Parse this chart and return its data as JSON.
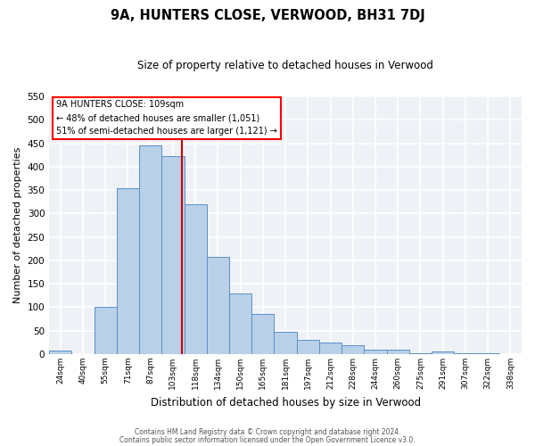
{
  "title": "9A, HUNTERS CLOSE, VERWOOD, BH31 7DJ",
  "subtitle": "Size of property relative to detached houses in Verwood",
  "xlabel": "Distribution of detached houses by size in Verwood",
  "ylabel": "Number of detached properties",
  "categories": [
    "24sqm",
    "40sqm",
    "55sqm",
    "71sqm",
    "87sqm",
    "103sqm",
    "118sqm",
    "134sqm",
    "150sqm",
    "165sqm",
    "181sqm",
    "197sqm",
    "212sqm",
    "228sqm",
    "244sqm",
    "260sqm",
    "275sqm",
    "291sqm",
    "307sqm",
    "322sqm",
    "338sqm"
  ],
  "values": [
    7,
    0,
    100,
    355,
    445,
    422,
    320,
    207,
    130,
    85,
    48,
    30,
    24,
    19,
    9,
    9,
    1,
    5,
    1,
    2,
    0
  ],
  "bar_color": "#b8d0e8",
  "bar_edge_color": "#5b8fc9",
  "bg_color": "#eef2f7",
  "vline_color": "#cc0000",
  "vline_x_index": 5.4,
  "annotation_title": "9A HUNTERS CLOSE: 109sqm",
  "annotation_line1": "← 48% of detached houses are smaller (1,051)",
  "annotation_line2": "51% of semi-detached houses are larger (1,121) →",
  "ylim": [
    0,
    550
  ],
  "yticks": [
    0,
    50,
    100,
    150,
    200,
    250,
    300,
    350,
    400,
    450,
    500,
    550
  ],
  "footer1": "Contains HM Land Registry data © Crown copyright and database right 2024.",
  "footer2": "Contains public sector information licensed under the Open Government Licence v3.0."
}
